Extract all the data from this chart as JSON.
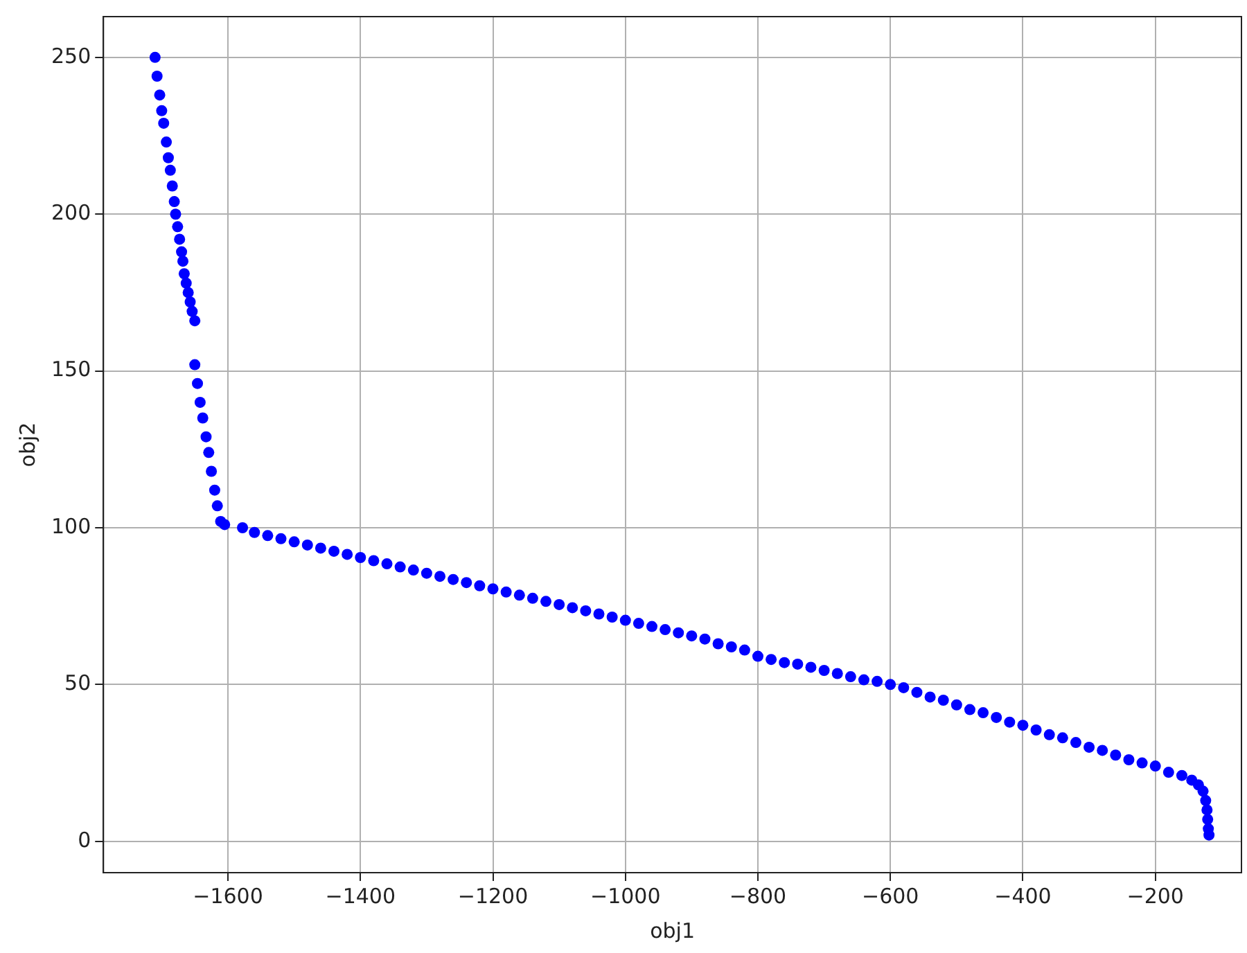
{
  "chart_data": {
    "type": "scatter",
    "xlabel": "obj1",
    "ylabel": "obj2",
    "marker": "circle",
    "grid": true,
    "legend": false,
    "xlim": [
      -1788,
      -70
    ],
    "ylim": [
      -10,
      263
    ],
    "xticks": [
      {
        "value": -1600,
        "label": "−1600"
      },
      {
        "value": -1400,
        "label": "−1400"
      },
      {
        "value": -1200,
        "label": "−1200"
      },
      {
        "value": -1000,
        "label": "−1000"
      },
      {
        "value": -800,
        "label": "−800"
      },
      {
        "value": -600,
        "label": "−600"
      },
      {
        "value": -400,
        "label": "−400"
      },
      {
        "value": -200,
        "label": "−200"
      }
    ],
    "yticks": [
      0,
      50,
      100,
      150,
      200,
      250
    ],
    "series": [
      {
        "color": "#0000ff",
        "x": [
          -1710,
          -1707,
          -1703,
          -1700,
          -1697,
          -1693,
          -1690,
          -1687,
          -1684,
          -1681,
          -1679,
          -1676,
          -1673,
          -1670,
          -1668,
          -1666,
          -1663,
          -1660,
          -1657,
          -1654,
          -1650,
          -1650,
          -1646,
          -1642,
          -1638,
          -1633,
          -1629,
          -1625,
          -1620,
          -1616,
          -1611,
          -1605,
          -1578,
          -1560,
          -1540,
          -1520,
          -1500,
          -1480,
          -1460,
          -1440,
          -1420,
          -1400,
          -1380,
          -1360,
          -1340,
          -1320,
          -1300,
          -1280,
          -1260,
          -1240,
          -1220,
          -1200,
          -1180,
          -1160,
          -1140,
          -1120,
          -1100,
          -1080,
          -1060,
          -1040,
          -1020,
          -1000,
          -980,
          -960,
          -940,
          -920,
          -900,
          -880,
          -860,
          -840,
          -820,
          -800,
          -780,
          -760,
          -740,
          -720,
          -700,
          -680,
          -660,
          -640,
          -620,
          -600,
          -580,
          -560,
          -540,
          -520,
          -500,
          -480,
          -460,
          -440,
          -420,
          -400,
          -380,
          -360,
          -340,
          -320,
          -300,
          -280,
          -260,
          -240,
          -220,
          -200,
          -180,
          -160,
          -145,
          -135,
          -128,
          -124,
          -122,
          -121,
          -120,
          -119
        ],
        "values": [
          250,
          244,
          238,
          233,
          229,
          223,
          218,
          214,
          209,
          204,
          200,
          196,
          192,
          188,
          185,
          181,
          178,
          175,
          172,
          169,
          166,
          152,
          146,
          140,
          135,
          129,
          124,
          118,
          112,
          107,
          102,
          101,
          100,
          98.5,
          97.5,
          96.5,
          95.5,
          94.5,
          93.5,
          92.5,
          91.5,
          90.5,
          89.5,
          88.5,
          87.5,
          86.5,
          85.5,
          84.5,
          83.5,
          82.5,
          81.5,
          80.5,
          79.5,
          78.5,
          77.5,
          76.5,
          75.5,
          74.5,
          73.5,
          72.5,
          71.5,
          70.5,
          69.5,
          68.5,
          67.5,
          66.5,
          65.5,
          64.5,
          63,
          62,
          61,
          59,
          58,
          57,
          56.5,
          55.5,
          54.5,
          53.5,
          52.5,
          51.5,
          51,
          50,
          49,
          47.5,
          46,
          45,
          43.5,
          42,
          41,
          39.5,
          38,
          37,
          35.5,
          34,
          33,
          31.5,
          30,
          29,
          27.5,
          26,
          25,
          24,
          22,
          21,
          19.5,
          18,
          16,
          13,
          10,
          7,
          4,
          2
        ]
      }
    ]
  }
}
